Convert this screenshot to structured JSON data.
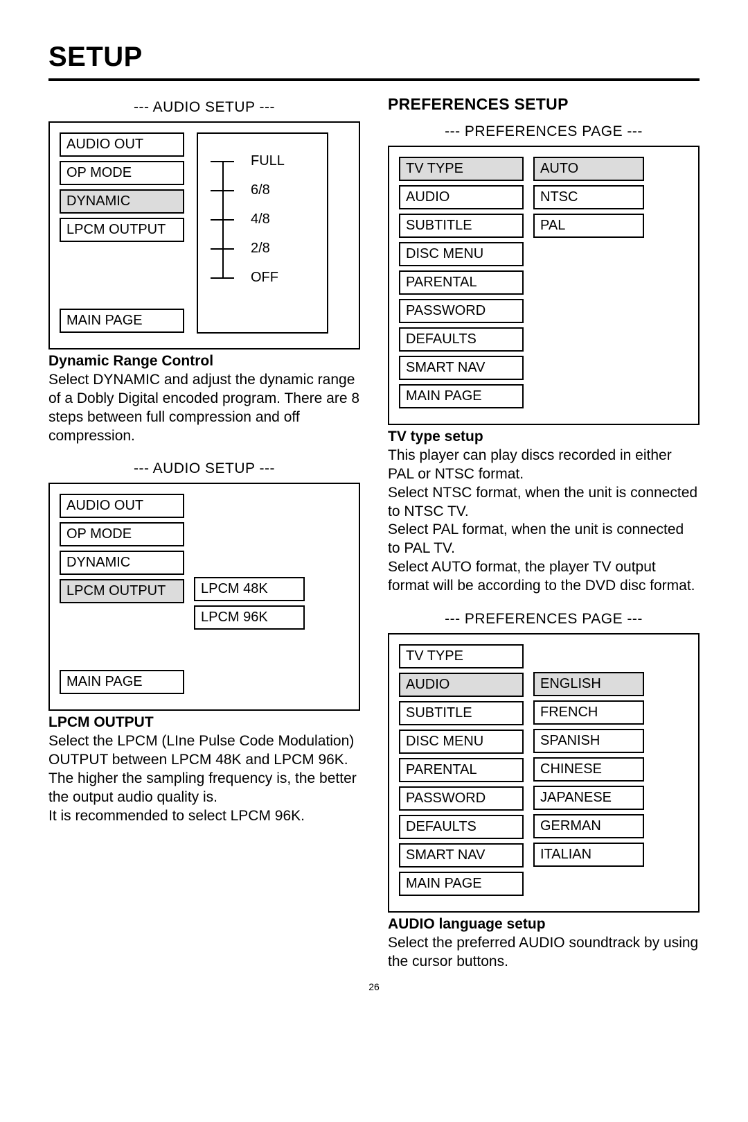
{
  "page_title": "SETUP",
  "page_number": "26",
  "left": {
    "panel1": {
      "label": "--- AUDIO SETUP ---",
      "menu": [
        "AUDIO OUT",
        "OP MODE",
        "DYNAMIC",
        "LPCM OUTPUT"
      ],
      "selected": "DYNAMIC",
      "footer": "MAIN PAGE",
      "slider": [
        "FULL",
        "6/8",
        "4/8",
        "2/8",
        "OFF"
      ]
    },
    "text1_title": "Dynamic Range Control",
    "text1_body": "Select DYNAMIC and adjust the dynamic range of a Dobly Digital encoded program.  There are 8 steps between full compression and off compression.",
    "panel2": {
      "label": "--- AUDIO SETUP ---",
      "menu": [
        "AUDIO OUT",
        "OP MODE",
        "DYNAMIC",
        "LPCM OUTPUT"
      ],
      "selected": "LPCM OUTPUT",
      "footer": "MAIN PAGE",
      "options": [
        "LPCM 48K",
        "LPCM 96K"
      ]
    },
    "text2_title": "LPCM OUTPUT",
    "text2_body": "Select the LPCM (LIne Pulse Code Modulation) OUTPUT between LPCM 48K and LPCM 96K. The higher the sampling frequency is, the better the output audio quality is.",
    "text2_body2": "It is recommended to select LPCM 96K."
  },
  "right": {
    "heading": "PREFERENCES SETUP",
    "panel1": {
      "label": "--- PREFERENCES PAGE ---",
      "menu": [
        "TV TYPE",
        "AUDIO",
        "SUBTITLE",
        "DISC MENU",
        "PARENTAL",
        "PASSWORD",
        "DEFAULTS",
        "SMART NAV",
        "MAIN PAGE"
      ],
      "selected": "TV TYPE",
      "options": [
        "AUTO",
        "NTSC",
        "PAL"
      ],
      "opt_selected": "AUTO"
    },
    "text1_title": "TV type setup",
    "text1_body": "This player can play discs recorded in either PAL or NTSC format.\nSelect NTSC format, when the unit is connected to NTSC TV.\nSelect PAL format, when  the unit is connected to PAL TV.\nSelect AUTO format, the player TV output format will be according to the DVD disc format.",
    "panel2": {
      "label": "--- PREFERENCES PAGE ---",
      "menu": [
        "TV TYPE",
        "AUDIO",
        "SUBTITLE",
        "DISC MENU",
        "PARENTAL",
        "PASSWORD",
        "DEFAULTS",
        "SMART NAV",
        "MAIN PAGE"
      ],
      "selected": "AUDIO",
      "options": [
        "ENGLISH",
        "FRENCH",
        "SPANISH",
        "CHINESE",
        "JAPANESE",
        "GERMAN",
        "ITALIAN"
      ],
      "opt_selected": "ENGLISH"
    },
    "text2_title": "AUDIO language setup",
    "text2_body": "Select the preferred AUDIO soundtrack by using the cursor buttons."
  }
}
